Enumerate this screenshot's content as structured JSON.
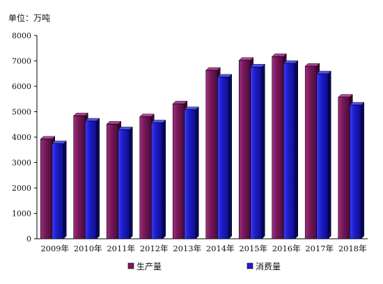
{
  "chart_data": {
    "type": "bar",
    "unit_label": "单位：万吨",
    "categories": [
      "2009年",
      "2010年",
      "2011年",
      "2012年",
      "2013年",
      "2014年",
      "2015年",
      "2016年",
      "2017年",
      "2018年"
    ],
    "series": [
      {
        "name": "生产量",
        "color": "#7b1a5e",
        "values": [
          3920,
          4840,
          4510,
          4800,
          5310,
          6630,
          7020,
          7170,
          6790,
          5570
        ]
      },
      {
        "name": "消费量",
        "color": "#1f1fd0",
        "values": [
          3740,
          4630,
          4290,
          4560,
          5080,
          6360,
          6760,
          6900,
          6490,
          5260
        ]
      }
    ],
    "ylim": [
      0,
      8000
    ],
    "yticks": [
      0,
      1000,
      2000,
      3000,
      4000,
      5000,
      6000,
      7000,
      8000
    ],
    "grid": false,
    "legend_position": "bottom"
  }
}
